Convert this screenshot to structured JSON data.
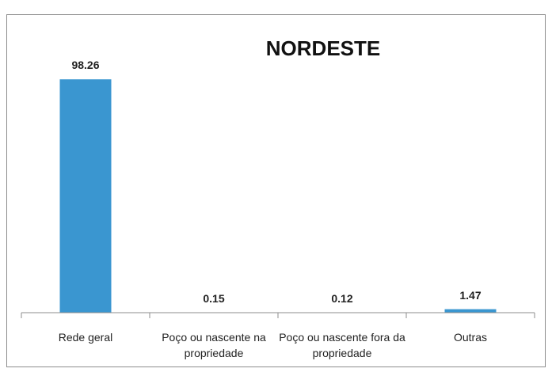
{
  "chart_data": {
    "type": "bar",
    "title": "NORDESTE",
    "categories": [
      "Rede geral",
      "Poço ou nascente na propriedade",
      "Poço ou nascente fora da propriedade",
      "Outras"
    ],
    "values": [
      98.26,
      0.15,
      0.12,
      1.47
    ],
    "color": "#3a96d0",
    "ylim": [
      0,
      100
    ]
  }
}
